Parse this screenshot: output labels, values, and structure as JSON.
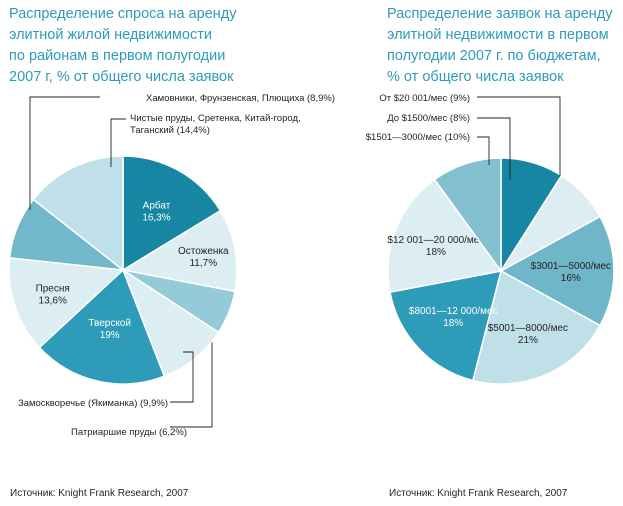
{
  "chart_data": [
    {
      "type": "pie",
      "title_lines": [
        "Распределение спроса на аренду",
        "элитной жилой недвижимости",
        "по районам в первом полугодии",
        "2007 г, % от общего числа заявок"
      ],
      "slices": [
        {
          "label": "Арбат",
          "value_text": "16,3%",
          "value": 16.3,
          "color": "#1786a3",
          "text_color": "#ffffff"
        },
        {
          "label": "Остоженка",
          "value_text": "11,7%",
          "value": 11.7,
          "color": "#ddeef2",
          "text_color": "#231f20"
        },
        {
          "label": "Патриаршие пруды",
          "value_text": "(6,2%)",
          "value": 6.2,
          "color": "#95cbd8",
          "text_color": "#231f20"
        },
        {
          "label": "Замоскворечье (Якиманка)",
          "value_text": "(9,9%)",
          "value": 9.9,
          "color": "#ddeef2",
          "text_color": "#231f20"
        },
        {
          "label": "Тверской",
          "value_text": "19%",
          "value": 19.0,
          "color": "#2e9bb8",
          "text_color": "#ffffff"
        },
        {
          "label": "Пресня",
          "value_text": "13,6%",
          "value": 13.6,
          "color": "#ddeef2",
          "text_color": "#231f20"
        },
        {
          "label": "Хамовники, Фрунзенская, Плющиха",
          "value_text": "(8,9%)",
          "value": 8.9,
          "color": "#71b8ca",
          "text_color": "#231f20"
        },
        {
          "label": "Чистые пруды, Сретенка, Китай-город, Таганский",
          "label_lines": [
            "Чистые пруды, Сретенка, Китай-город,",
            "Таганский (14,4%)"
          ],
          "value_text": "(14,4%)",
          "value": 14.4,
          "color": "#bfe0e8",
          "text_color": "#231f20"
        }
      ],
      "source": "Источник: Knight Frank Research, 2007"
    },
    {
      "type": "pie",
      "title_lines": [
        "Распределение заявок на аренду",
        "элитной недвижимости в первом",
        "полугодии 2007 г. по бюджетам,",
        "% от общего числа заявок"
      ],
      "slices": [
        {
          "label": "От $20 001/мес",
          "value_text": "(9%)",
          "value": 9,
          "color": "#1786a3",
          "text_color": "#ffffff"
        },
        {
          "label": "До $1500/мес",
          "value_text": "(8%)",
          "value": 8,
          "color": "#ddeef2",
          "text_color": "#231f20"
        },
        {
          "label": "$3001—5000/мес",
          "value_text": "16%",
          "value": 16,
          "color": "#6fb6c8",
          "text_color": "#231f20"
        },
        {
          "label": "$5001—8000/мес",
          "value_text": "21%",
          "value": 21,
          "color": "#bfe0e8",
          "text_color": "#231f20"
        },
        {
          "label": "$8001—12 000/мес",
          "value_text": "18%",
          "value": 18,
          "color": "#2e9bb8",
          "text_color": "#ffffff"
        },
        {
          "label": "$12 001—20 000/мес",
          "value_text": "18%",
          "value": 18,
          "color": "#ddeef2",
          "text_color": "#231f20"
        },
        {
          "label": "$1501—3000/мес",
          "value_text": "(10%)",
          "value": 10,
          "color": "#82c0d0",
          "text_color": "#231f20"
        }
      ],
      "source": "Источник: Knight Frank Research, 2007"
    }
  ]
}
